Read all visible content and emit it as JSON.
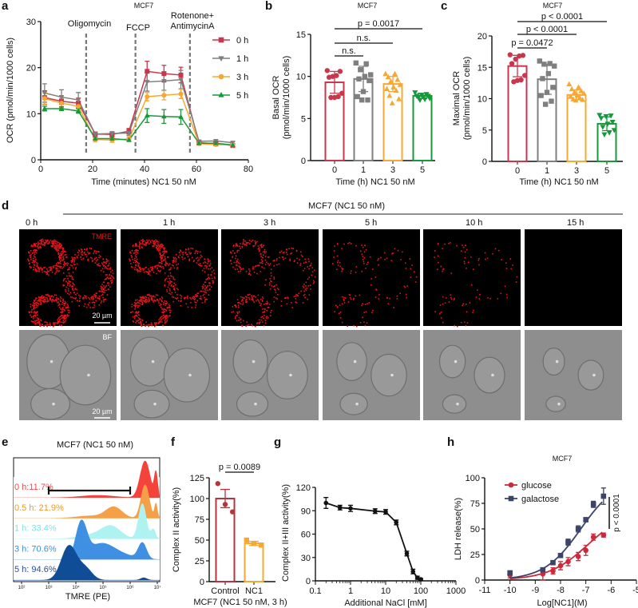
{
  "panels": {
    "a": {
      "letter": "a",
      "title": "MCF7",
      "xlabel": "Time (minutes) NC1 50 nM",
      "ylabel": "OCR (pmol/min/1000 cells)",
      "injections": [
        "Oligomycin",
        "FCCP",
        "Rotenone+",
        "AntimycinA"
      ]
    },
    "b": {
      "letter": "b",
      "title": "MCF7",
      "xlabel": "Time (h) NC1 50 nM",
      "ylabel1": "Basal OCR",
      "ylabel2": "(pmol/min/1000 cells)"
    },
    "c": {
      "letter": "c",
      "title": "MCF7",
      "xlabel": "Time (h) NC1 50 nM",
      "ylabel1": "Maximal OCR",
      "ylabel2": "(pmol/min/1000 cells)"
    },
    "d": {
      "letter": "d",
      "title": "MCF7 (NC1 50 nM)",
      "columns": [
        "0 h",
        "1 h",
        "3 h",
        "5 h",
        "10 h",
        "15 h"
      ],
      "row_labels": [
        "TMRE",
        "BF"
      ],
      "scale_bar": "20 µm",
      "tmre_intensity": [
        1.0,
        0.85,
        0.45,
        0.15,
        0.1,
        0.0
      ]
    },
    "e": {
      "letter": "e",
      "title": "MCF7 (NC1 50 nM)",
      "xlabel": "TMRE (PE)"
    },
    "f": {
      "letter": "f",
      "ylabel": "Complex II activity(%)",
      "xlabel": "MCF7 (NC1 50 nM, 3 h)"
    },
    "g": {
      "letter": "g",
      "ylabel": "Complex II+III activity(%)",
      "xlabel": "Additional NaCl [mM]"
    },
    "h": {
      "letter": "h",
      "title": "MCF7",
      "ylabel": "LDH release(%)",
      "xlabel": "Log[NC1](M)"
    }
  },
  "colors": {
    "0h": "#c8374b",
    "1h": "#7f7f7f",
    "3h": "#f7a832",
    "5h": "#17983a",
    "glucose": "#cc2a3c",
    "galactose": "#3c4468"
  },
  "chart_data": [
    {
      "id": "a",
      "type": "line",
      "title": "MCF7",
      "xlabel": "Time (minutes) NC1 50 nM",
      "ylabel": "OCR (pmol/min/1000 cells)",
      "xlim": [
        0,
        80
      ],
      "ylim": [
        0,
        30
      ],
      "xticks": [
        "0",
        "20",
        "40",
        "60",
        "80"
      ],
      "yticks": [
        "0",
        "10",
        "20",
        "30"
      ],
      "legend": "right",
      "injection_times": [
        17.5,
        36.5,
        57.5
      ],
      "x": [
        1.5,
        8,
        14.5,
        21,
        27.5,
        34,
        41,
        47.5,
        54,
        61,
        67.5,
        74
      ],
      "series": [
        {
          "name": "0 h",
          "marker": "square",
          "values": [
            13.5,
            12.7,
            12.3,
            5.6,
            5.5,
            6.2,
            19.2,
            18.7,
            18.4,
            3.7,
            3.5,
            3.1
          ],
          "errors": [
            1.5,
            1.2,
            1.1,
            0.4,
            0.4,
            0.6,
            2.2,
            1.8,
            1.7,
            0.3,
            0.3,
            0.2
          ]
        },
        {
          "name": "1 h",
          "marker": "triangle-down",
          "values": [
            14.5,
            13.6,
            13.0,
            5.6,
            5.7,
            5.8,
            16.9,
            17.1,
            17.4,
            4.0,
            4.1,
            3.7
          ],
          "errors": [
            2.0,
            1.6,
            1.6,
            0.4,
            0.4,
            0.5,
            2.0,
            2.0,
            2.0,
            0.3,
            0.3,
            0.3
          ]
        },
        {
          "name": "3 h",
          "marker": "circle",
          "values": [
            13.3,
            12.3,
            11.6,
            4.4,
            4.3,
            4.5,
            13.7,
            14.0,
            14.3,
            3.5,
            3.3,
            3.2
          ],
          "errors": [
            1.2,
            1.0,
            1.0,
            0.5,
            0.5,
            0.5,
            0.9,
            1.0,
            1.0,
            0.3,
            0.3,
            0.2
          ]
        },
        {
          "name": "5 h",
          "marker": "triangle-up",
          "values": [
            11.1,
            11.1,
            10.6,
            4.6,
            4.6,
            4.3,
            9.6,
            9.4,
            9.3,
            3.6,
            3.6,
            3.2
          ],
          "errors": [
            0.5,
            0.4,
            0.5,
            0.3,
            0.3,
            0.3,
            1.5,
            1.5,
            1.6,
            0.2,
            0.2,
            0.2
          ]
        }
      ]
    },
    {
      "id": "b",
      "type": "bar",
      "title": "MCF7",
      "xlabel": "Time (h) NC1 50 nM",
      "ylabel": "Basal OCR (pmol/min/1000 cells)",
      "ylim": [
        0,
        15
      ],
      "yticks": [
        "0",
        "5",
        "10",
        "15"
      ],
      "categories": [
        "0",
        "1",
        "3",
        "5"
      ],
      "values": [
        9.3,
        9.7,
        9.1,
        7.7
      ],
      "sd": [
        1.3,
        1.5,
        0.9,
        0.3
      ],
      "points": [
        [
          10.7,
          10.6,
          10.1,
          10.0,
          9.9,
          8.0,
          7.6,
          7.5,
          7.5
        ],
        [
          11.6,
          11.5,
          10.8,
          10.2,
          10.0,
          9.7,
          9.5,
          8.2,
          7.6,
          7.2,
          7.2
        ],
        [
          10.3,
          10.3,
          9.9,
          9.6,
          9.4,
          9.0,
          8.7,
          8.5,
          8.3,
          7.7,
          7.3,
          6.8
        ],
        [
          8.1,
          7.9,
          7.8,
          7.7,
          7.7,
          7.6,
          7.5,
          7.4,
          7.3,
          7.2
        ]
      ],
      "comparisons": [
        {
          "from": "0",
          "to": "1",
          "label": "n.s."
        },
        {
          "from": "0",
          "to": "3",
          "label": "n.s."
        },
        {
          "from": "0",
          "to": "5",
          "label": "p = 0.0017"
        }
      ]
    },
    {
      "id": "c",
      "type": "bar",
      "title": "MCF7",
      "xlabel": "Time (h) NC1 50 nM",
      "ylabel": "Maximal OCR (pmol/min/1000 cells)",
      "ylim": [
        0,
        20
      ],
      "yticks": [
        "0",
        "5",
        "10",
        "15",
        "20"
      ],
      "categories": [
        "0",
        "1",
        "3",
        "5"
      ],
      "values": [
        15.2,
        13.1,
        10.6,
        6.0
      ],
      "sd": [
        1.7,
        2.4,
        0.8,
        1.1
      ],
      "points": [
        [
          17.0,
          16.9,
          16.8,
          16.3,
          15.6,
          13.7,
          13.0,
          12.9,
          12.7
        ],
        [
          16.0,
          15.6,
          15.5,
          15.2,
          14.0,
          13.2,
          11.8,
          11.0,
          10.5,
          9.6,
          9.1
        ],
        [
          12.3,
          11.8,
          11.5,
          11.2,
          11.0,
          10.8,
          10.5,
          10.3,
          10.1,
          9.9,
          9.8,
          9.7
        ],
        [
          7.4,
          7.3,
          7.2,
          6.9,
          6.3,
          6.0,
          5.5,
          5.0,
          4.6,
          4.3
        ]
      ],
      "comparisons": [
        {
          "from": "0",
          "to": "1",
          "label": "p = 0.0472"
        },
        {
          "from": "0",
          "to": "3",
          "label": "p < 0.0001"
        },
        {
          "from": "0",
          "to": "5",
          "label": "p < 0.0001"
        }
      ]
    },
    {
      "id": "e",
      "type": "area",
      "title": "MCF7 (NC1 50 nM)",
      "xlabel": "TMRE (PE)",
      "xscale": "log",
      "xlim": [
        100,
        10000000
      ],
      "xticks": [
        "10²",
        "10³",
        "10⁴",
        "10⁵",
        "10⁶",
        "10⁷"
      ],
      "gate": [
        1000,
        1000000
      ],
      "series": [
        {
          "name": "0 h:11.7%",
          "color": "#f4433b"
        },
        {
          "name": "0.5 h: 21.9%",
          "color": "#f5a049"
        },
        {
          "name": "1 h: 33.4%",
          "color": "#aef2f2"
        },
        {
          "name": "3 h: 70.6%",
          "color": "#3f8fe2"
        },
        {
          "name": "5 h: 94.6%",
          "color": "#0f4e96"
        }
      ]
    },
    {
      "id": "f",
      "type": "bar",
      "ylabel": "Complex II activity(%)",
      "xlabel": "MCF7 (NC1 50 nM, 3 h)",
      "ylim": [
        0,
        125
      ],
      "yticks": [
        "0",
        "25",
        "50",
        "75",
        "100",
        "125"
      ],
      "categories": [
        "Control",
        "NC1"
      ],
      "values": [
        100,
        46
      ],
      "sem": [
        11,
        2.5
      ],
      "points": [
        [
          118,
          93,
          84
        ],
        [
          50,
          46,
          44
        ]
      ],
      "comparisons": [
        {
          "from": "Control",
          "to": "NC1",
          "label": "p = 0.0089"
        }
      ]
    },
    {
      "id": "g",
      "type": "line",
      "ylabel": "Complex II+III activity(%)",
      "xlabel": "Additional NaCl [mM]",
      "xscale": "log",
      "xlim": [
        0.1,
        1000
      ],
      "ylim": [
        0,
        120
      ],
      "xticks": [
        "0.1",
        "1",
        "10",
        "100",
        "1000"
      ],
      "yticks": [
        "0",
        "30",
        "60",
        "90",
        "120"
      ],
      "x": [
        0.2,
        0.5,
        1,
        5,
        10,
        20,
        40,
        60,
        80,
        100
      ],
      "values": [
        100,
        94,
        93,
        89.5,
        88.5,
        75,
        35,
        12,
        4,
        2
      ],
      "errors": [
        7,
        3,
        4,
        3,
        3,
        3,
        3,
        3,
        2,
        1
      ]
    },
    {
      "id": "h",
      "type": "scatter",
      "title": "MCF7",
      "ylabel": "LDH release(%)",
      "xlabel": "Log[NC1](M)",
      "xlim": [
        -11,
        -5
      ],
      "ylim": [
        0,
        100
      ],
      "xticks": [
        "-11",
        "-10",
        "-9",
        "-8",
        "-7",
        "-6",
        "-5"
      ],
      "yticks": [
        "0",
        "25",
        "50",
        "75",
        "100"
      ],
      "legend": "top-left",
      "annotation": "p < 0.0001",
      "x": [
        -10,
        -8.7,
        -8.3,
        -8,
        -7.7,
        -7.3,
        -7,
        -6.7,
        -6.3
      ],
      "series": [
        {
          "name": "glucose",
          "marker": "circle",
          "values": [
            5,
            6,
            9,
            14,
            18,
            23,
            29,
            42,
            44
          ],
          "errors": [
            3,
            6,
            3,
            4,
            4,
            4,
            5,
            3,
            2
          ]
        },
        {
          "name": "galactose",
          "marker": "square",
          "values": [
            7,
            10,
            17,
            24,
            37,
            50,
            59,
            74,
            82
          ],
          "errors": [
            2,
            2,
            2,
            2,
            3,
            3,
            2,
            3,
            8
          ]
        }
      ]
    }
  ]
}
